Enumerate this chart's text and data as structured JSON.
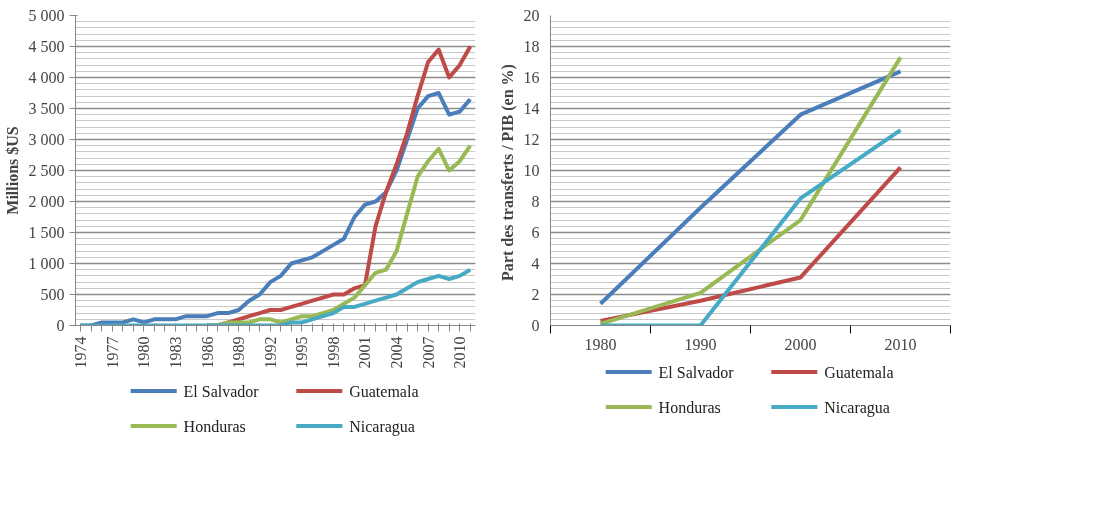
{
  "chart_data": [
    {
      "type": "line",
      "ylabel": "Millions $US",
      "categories": [
        "1974",
        null,
        null,
        "1977",
        null,
        null,
        "1980",
        null,
        null,
        "1983",
        null,
        null,
        "1986",
        null,
        null,
        "1989",
        null,
        null,
        "1992",
        null,
        null,
        "1995",
        null,
        null,
        "1998",
        null,
        null,
        "2001",
        null,
        null,
        "2004",
        null,
        null,
        "2007",
        null,
        null,
        "2010",
        null
      ],
      "ylim": [
        0,
        5000
      ],
      "yticks": [
        0,
        {
          "value": 500,
          "label": "500"
        },
        {
          "value": 1000,
          "label": "1 000"
        },
        {
          "value": 1500,
          "label": "1 500"
        },
        {
          "value": 2000,
          "label": "2 000"
        },
        {
          "value": 2500,
          "label": "2 500"
        },
        {
          "value": 3000,
          "label": "3 000"
        },
        {
          "value": 3500,
          "label": "3 500"
        },
        {
          "value": 4000,
          "label": "4 000"
        },
        {
          "value": 4500,
          "label": "4 500"
        },
        {
          "value": 5000,
          "label": "5 000"
        }
      ],
      "grid": "y",
      "legend": "bottom",
      "line_style": "solid",
      "marker": "none",
      "series": [
        {
          "name": "El Salvador",
          "color": "#4a7ebb",
          "values": [
            0,
            0,
            50,
            50,
            50,
            100,
            50,
            100,
            100,
            100,
            150,
            150,
            150,
            200,
            200,
            250,
            400,
            500,
            700,
            800,
            1000,
            1050,
            1100,
            1200,
            1300,
            1400,
            1750,
            1950,
            2000,
            2150,
            2500,
            3000,
            3500,
            3700,
            3750,
            3400,
            3450,
            3650
          ]
        },
        {
          "name": "Guatemala",
          "color": "#be4b48",
          "values": [
            null,
            null,
            null,
            null,
            null,
            null,
            null,
            null,
            null,
            null,
            null,
            null,
            0,
            0,
            50,
            100,
            150,
            200,
            250,
            250,
            300,
            350,
            400,
            450,
            500,
            500,
            600,
            650,
            1600,
            2150,
            2600,
            3100,
            3700,
            4250,
            4450,
            4000,
            4200,
            4500
          ]
        },
        {
          "name": "Honduras",
          "color": "#98b954",
          "values": [
            null,
            null,
            null,
            null,
            null,
            null,
            null,
            null,
            null,
            null,
            null,
            null,
            0,
            0,
            50,
            50,
            50,
            100,
            100,
            50,
            100,
            150,
            150,
            200,
            250,
            350,
            450,
            650,
            850,
            900,
            1200,
            1800,
            2400,
            2650,
            2850,
            2500,
            2650,
            2900
          ]
        },
        {
          "name": "Nicaragua",
          "color": "#46aac5",
          "values": [
            0,
            0,
            0,
            0,
            0,
            0,
            0,
            0,
            0,
            0,
            0,
            0,
            0,
            0,
            0,
            0,
            0,
            0,
            0,
            0,
            50,
            50,
            100,
            150,
            200,
            300,
            300,
            350,
            400,
            450,
            500,
            600,
            700,
            750,
            800,
            750,
            800,
            900
          ]
        }
      ]
    },
    {
      "type": "line",
      "ylabel": "Part des transferts / PIB  (en %)",
      "categories": [
        "1980",
        "1990",
        "2000",
        "2010"
      ],
      "ylim": [
        0,
        20
      ],
      "yticks": [
        0,
        2,
        4,
        6,
        8,
        10,
        12,
        14,
        16,
        18,
        20
      ],
      "grid": "y",
      "legend": "bottom",
      "line_style": "solid",
      "marker": "none",
      "series": [
        {
          "name": "El Salvador",
          "color": "#4a7ebb",
          "values": [
            1.4,
            7.6,
            13.6,
            16.4
          ]
        },
        {
          "name": "Guatemala",
          "color": "#be4b48",
          "values": [
            0.3,
            1.6,
            3.1,
            10.2
          ]
        },
        {
          "name": "Honduras",
          "color": "#98b954",
          "values": [
            0.1,
            2.1,
            6.8,
            17.3
          ]
        },
        {
          "name": "Nicaragua",
          "color": "#46aac5",
          "values": [
            0,
            0,
            8.2,
            12.6
          ]
        }
      ]
    }
  ]
}
